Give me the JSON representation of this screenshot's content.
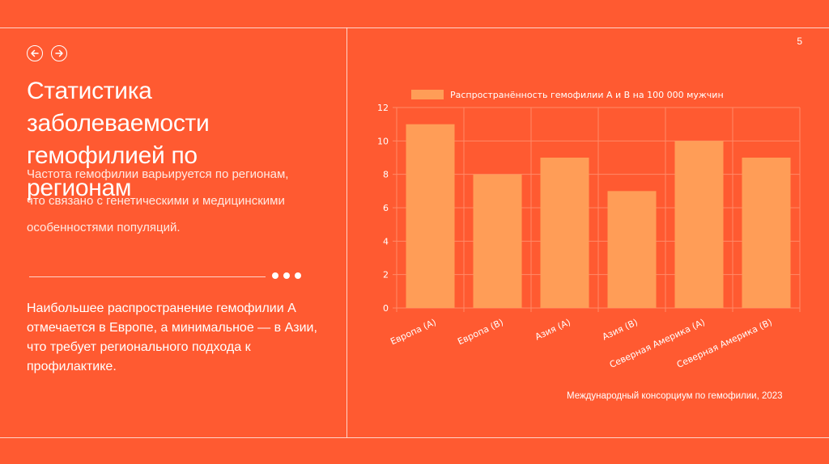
{
  "slide": {
    "page_number": "5",
    "title": "Статистика заболеваемости гемофилией по регионам",
    "subtitle": "Частота гемофилии варьируется по регионам, что связано с генетическими и медицинскими особенностями популяций.",
    "note": "Наибольшее распространение гемофилии А отмечается в Европе, а минимальное — в Азии, что требует регионального подхода к профилактике.",
    "source": "Международный консорциум по гемофилии, 2023"
  },
  "nav": {
    "prev_icon": "arrow-left-icon",
    "next_icon": "arrow-right-icon"
  },
  "colors": {
    "background": "#FF5A31",
    "bar": "#FF9D57",
    "grid": "#FF8A68",
    "text": "#FFFFFF"
  },
  "chart_data": {
    "type": "bar",
    "categories": [
      "Европа (A)",
      "Европа (B)",
      "Азия (A)",
      "Азия (B)",
      "Северная Америка (A)",
      "Северная Америка (B)"
    ],
    "series": [
      {
        "name": "Распространённость гемофилии A и B на 100 000 мужчин",
        "values": [
          11,
          8,
          9,
          7,
          10,
          9
        ]
      }
    ],
    "ylim": [
      0,
      12
    ],
    "yticks": [
      0,
      2,
      4,
      6,
      8,
      10,
      12
    ],
    "grid": true,
    "legend": "top",
    "xlabel": "",
    "ylabel": ""
  }
}
